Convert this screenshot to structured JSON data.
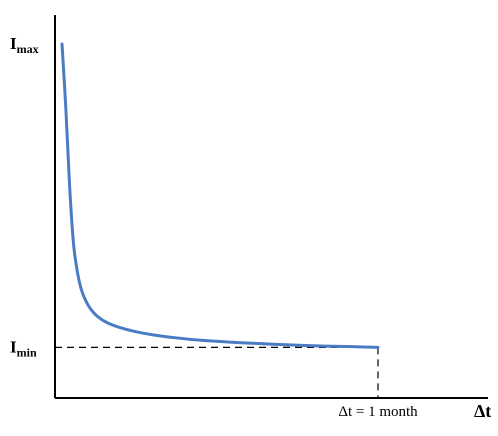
{
  "chart_data": {
    "type": "line",
    "title": "",
    "xlabel": "Δt",
    "ylabel": "",
    "y_tick_labels": [
      {
        "main": "I",
        "sub": "max"
      },
      {
        "main": "I",
        "sub": "min"
      }
    ],
    "x_marker_label": "Δt = 1 month",
    "ylim": [
      0,
      1
    ],
    "xlim": [
      0,
      1
    ],
    "grid": false,
    "legend": "none",
    "series": [
      {
        "color": "#4a7cc4",
        "x": [
          0.0,
          0.012,
          0.024,
          0.036,
          0.048,
          0.06,
          0.075,
          0.09,
          0.11,
          0.14,
          0.18,
          0.23,
          0.29,
          0.36,
          0.44,
          0.53,
          0.62,
          0.72,
          0.82,
          0.92,
          1.0
        ],
        "y": [
          1.0,
          0.82,
          0.6,
          0.44,
          0.36,
          0.31,
          0.275,
          0.252,
          0.232,
          0.214,
          0.2,
          0.188,
          0.178,
          0.17,
          0.163,
          0.158,
          0.154,
          0.15,
          0.147,
          0.145,
          0.143
        ]
      }
    ],
    "reference_lines": [
      {
        "orientation": "horizontal",
        "y": 0.143,
        "style": "dashed"
      },
      {
        "orientation": "vertical",
        "x": 1.0,
        "style": "dashed"
      }
    ]
  }
}
